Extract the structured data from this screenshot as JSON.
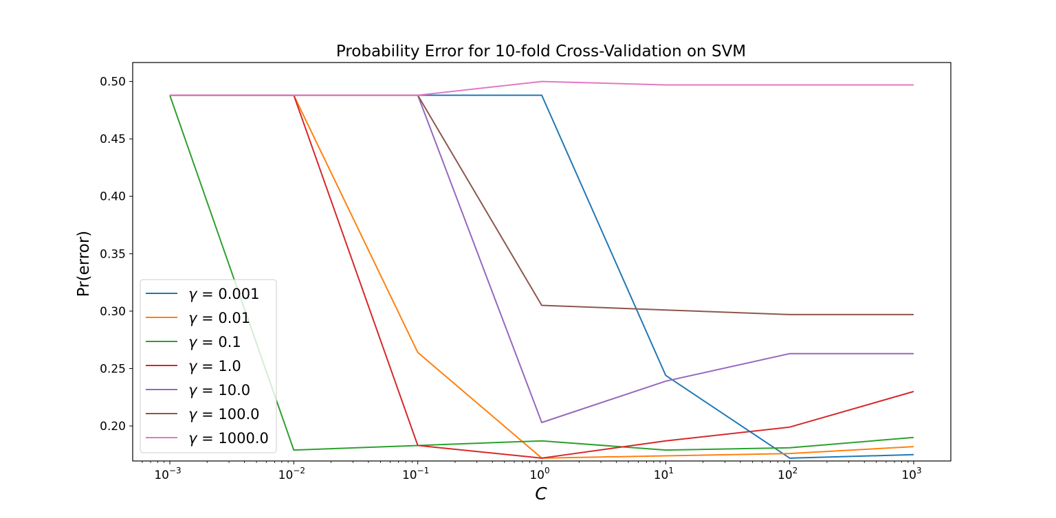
{
  "chart_data": {
    "type": "line",
    "title": "Probability Error for 10-fold Cross-Validation on SVM",
    "xlabel": "C",
    "ylabel": "Pr(error)",
    "xscale": "log",
    "x": [
      0.001,
      0.01,
      0.1,
      1,
      10,
      100,
      1000
    ],
    "x_tick_labels": [
      {
        "base": "10",
        "exp": "−3"
      },
      {
        "base": "10",
        "exp": "−2"
      },
      {
        "base": "10",
        "exp": "−1"
      },
      {
        "base": "10",
        "exp": "0"
      },
      {
        "base": "10",
        "exp": "1"
      },
      {
        "base": "10",
        "exp": "2"
      },
      {
        "base": "10",
        "exp": "3"
      }
    ],
    "y_ticks": [
      0.2,
      0.25,
      0.3,
      0.35,
      0.4,
      0.45,
      0.5
    ],
    "y_tick_labels": [
      "0.20",
      "0.25",
      "0.30",
      "0.35",
      "0.40",
      "0.45",
      "0.50"
    ],
    "ylim": [
      0.1695,
      0.5165
    ],
    "grid": false,
    "legend_position": "lower-left",
    "series": [
      {
        "name": "γ = 0.001",
        "gamma": "0.001",
        "color": "#1f77b4",
        "values": [
          0.488,
          0.488,
          0.488,
          0.488,
          0.244,
          0.172,
          0.175
        ]
      },
      {
        "name": "γ = 0.01",
        "gamma": "0.01",
        "color": "#ff7f0e",
        "values": [
          0.488,
          0.488,
          0.264,
          0.172,
          0.174,
          0.176,
          0.182
        ]
      },
      {
        "name": "γ = 0.1",
        "gamma": "0.1",
        "color": "#2ca02c",
        "values": [
          0.488,
          0.179,
          0.183,
          0.187,
          0.179,
          0.181,
          0.19
        ]
      },
      {
        "name": "γ = 1.0",
        "gamma": "1.0",
        "color": "#d62728",
        "values": [
          0.488,
          0.488,
          0.183,
          0.172,
          0.187,
          0.199,
          0.23
        ]
      },
      {
        "name": "γ = 10.0",
        "gamma": "10.0",
        "color": "#9467bd",
        "values": [
          0.488,
          0.488,
          0.488,
          0.203,
          0.239,
          0.263,
          0.263
        ]
      },
      {
        "name": "γ = 100.0",
        "gamma": "100.0",
        "color": "#8c564b",
        "values": [
          0.488,
          0.488,
          0.488,
          0.305,
          0.301,
          0.297,
          0.297
        ]
      },
      {
        "name": "γ = 1000.0",
        "gamma": "1000.0",
        "color": "#e377c2",
        "values": [
          0.488,
          0.488,
          0.488,
          0.5,
          0.497,
          0.497,
          0.497
        ]
      }
    ]
  }
}
